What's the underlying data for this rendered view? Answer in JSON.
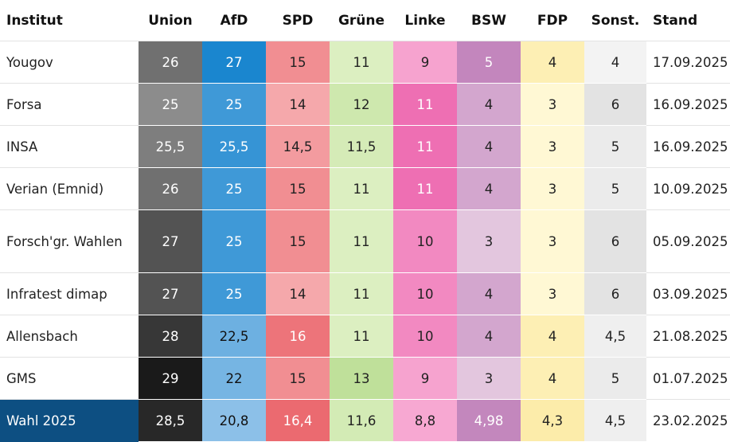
{
  "chart_data": {
    "type": "table",
    "columns": [
      "Institut",
      "Union",
      "AfD",
      "SPD",
      "Grüne",
      "Linke",
      "BSW",
      "FDP",
      "Sonst.",
      "Stand"
    ],
    "rows": [
      {
        "institut": "Yougov",
        "values": [
          "26",
          "27",
          "15",
          "11",
          "9",
          "5",
          "4",
          "4"
        ],
        "stand": "17.09.2025"
      },
      {
        "institut": "Forsa",
        "values": [
          "25",
          "25",
          "14",
          "12",
          "11",
          "4",
          "3",
          "6"
        ],
        "stand": "16.09.2025"
      },
      {
        "institut": "INSA",
        "values": [
          "25,5",
          "25,5",
          "14,5",
          "11,5",
          "11",
          "4",
          "3",
          "5"
        ],
        "stand": "16.09.2025"
      },
      {
        "institut": "Verian (Emnid)",
        "values": [
          "26",
          "25",
          "15",
          "11",
          "11",
          "4",
          "3",
          "5"
        ],
        "stand": "10.09.2025"
      },
      {
        "institut": "Forsch'gr. Wahlen",
        "values": [
          "27",
          "25",
          "15",
          "11",
          "10",
          "3",
          "3",
          "6"
        ],
        "stand": "05.09.2025"
      },
      {
        "institut": "Infratest dimap",
        "values": [
          "27",
          "25",
          "14",
          "11",
          "10",
          "4",
          "3",
          "6"
        ],
        "stand": "03.09.2025"
      },
      {
        "institut": "Allensbach",
        "values": [
          "28",
          "22,5",
          "16",
          "11",
          "10",
          "4",
          "4",
          "4,5"
        ],
        "stand": "21.08.2025"
      },
      {
        "institut": "GMS",
        "values": [
          "29",
          "22",
          "15",
          "13",
          "9",
          "3",
          "4",
          "5"
        ],
        "stand": "01.07.2025"
      },
      {
        "institut": "Wahl 2025",
        "values": [
          "28,5",
          "20,8",
          "16,4",
          "11,6",
          "8,8",
          "4,98",
          "4,3",
          "4,5"
        ],
        "stand": "23.02.2025"
      }
    ],
    "party_colors": {
      "Union": {
        "min": "#8c8c8c",
        "max": "#1a1a1a",
        "text": "#ffffff"
      },
      "AfD": {
        "min": "#8cc0e8",
        "max": "#1a86cf",
        "text_dark": "#111111",
        "text_light": "#ffffff"
      },
      "SPD": {
        "min": "#f5a8ab",
        "max": "#eb6a70",
        "text_dark": "#222222",
        "text_light": "#ffffff"
      },
      "Grüne": {
        "min": "#dcefc1",
        "max": "#bfe09a",
        "text": "#222222"
      },
      "Linke": {
        "min": "#f7a8d2",
        "max": "#ee6fb3",
        "text_dark": "#222222",
        "text_light": "#ffffff"
      },
      "BSW": {
        "min": "#e3c6de",
        "max": "#c386bd",
        "text_dark": "#222222",
        "text_light": "#ffffff"
      },
      "FDP": {
        "min": "#fff8d4",
        "max": "#fcecaa",
        "text": "#222222"
      },
      "Sonst.": {
        "min": "#f3f3f3",
        "max": "#e3e3e3",
        "text": "#222222"
      }
    }
  }
}
